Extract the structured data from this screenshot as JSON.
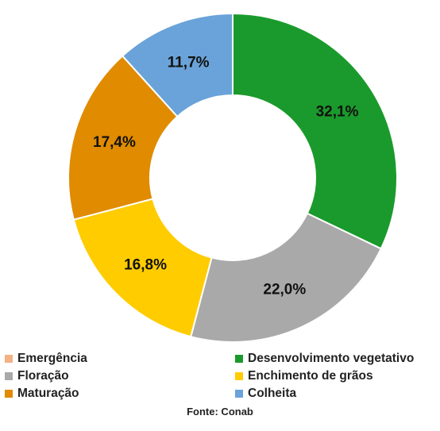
{
  "chart_data": {
    "type": "pie",
    "title": "",
    "categories": [
      "Emergência",
      "Desenvolvimento vegetativo",
      "Floração",
      "Enchimento de grãos",
      "Maturação",
      "Colheita"
    ],
    "values": [
      0.0,
      32.1,
      22.0,
      16.8,
      17.4,
      11.7
    ],
    "value_labels": [
      "",
      "32,1%",
      "22,0%",
      "16,8%",
      "17,4%",
      "11,7%"
    ],
    "colors": [
      "#f4b183",
      "#1a9a2c",
      "#a9a9a9",
      "#ffcc00",
      "#e08b00",
      "#6aa3d9"
    ],
    "donut": true,
    "legend_position": "bottom"
  },
  "source_text": "Fonte: Conab"
}
